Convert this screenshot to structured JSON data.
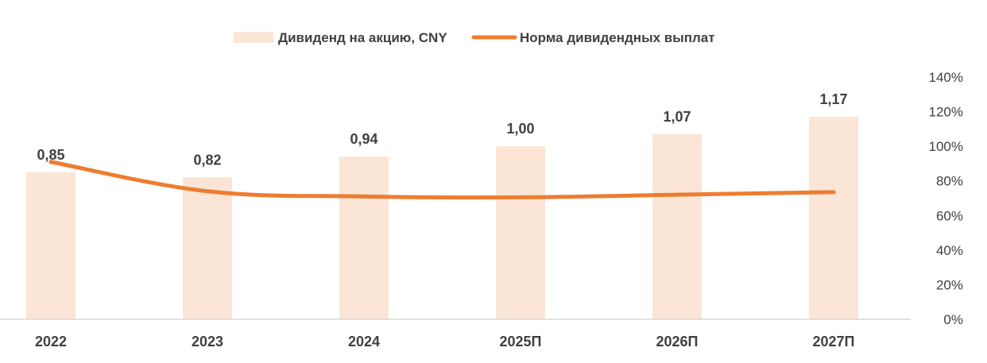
{
  "chart_data": {
    "type": "bar",
    "categories": [
      "2022",
      "2023",
      "2024",
      "2025П",
      "2026П",
      "2027П"
    ],
    "series": [
      {
        "name": "Дивиденд на акцию, CNY",
        "type": "bar",
        "axis": "left",
        "values": [
          0.85,
          0.82,
          0.94,
          1.0,
          1.07,
          1.17
        ],
        "labels": [
          "0,85",
          "0,82",
          "0,94",
          "1,00",
          "1,07",
          "1,17"
        ],
        "color": "#FBE5D6"
      },
      {
        "name": "Норма дивидендных выплат",
        "type": "line",
        "axis": "right",
        "values": [
          91,
          74,
          71,
          70.5,
          72,
          73.5
        ],
        "color": "#ED7D31"
      }
    ],
    "y_left_range": [
      0,
      1.4
    ],
    "y_right": {
      "range": [
        0,
        140
      ],
      "ticks": [
        "0%",
        "20%",
        "40%",
        "60%",
        "80%",
        "100%",
        "120%",
        "140%"
      ]
    },
    "legend_position": "top-center",
    "grid": false
  }
}
